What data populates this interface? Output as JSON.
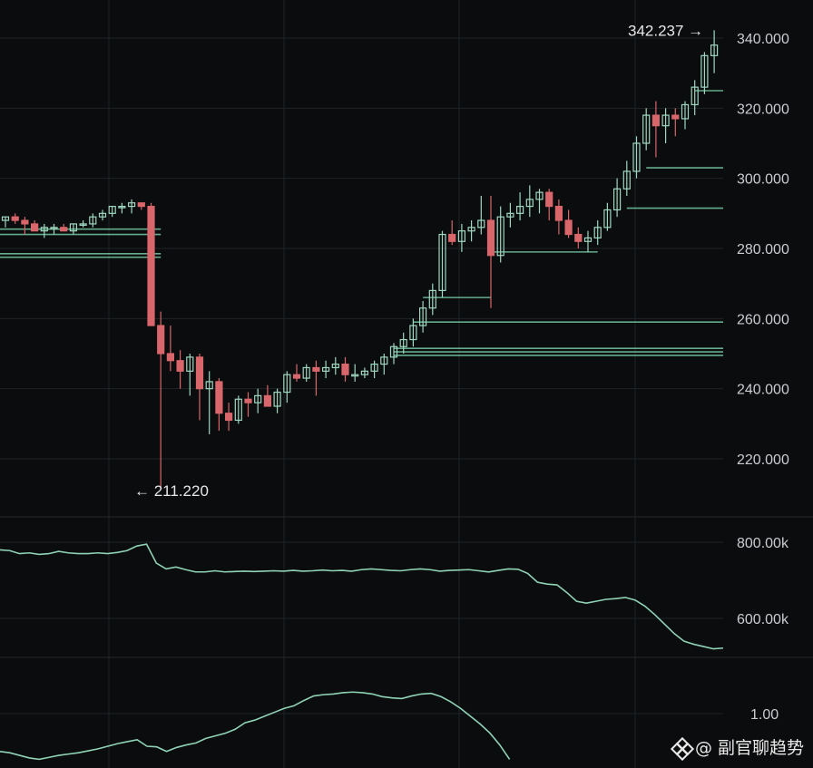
{
  "colors": {
    "background": "#0b0c0d",
    "grid": "#1f2326",
    "up": "#9fd8c0",
    "down": "#d9666b",
    "line": "#8fd3b6",
    "level": "#74c9a3",
    "text": "#c9ccd0"
  },
  "annotations": {
    "high": "342.237",
    "low": "211.220",
    "high_arrow": "→",
    "low_arrow": "←"
  },
  "watermark": {
    "text": "@ 副官聊趋势",
    "icon": "binance-logo-icon"
  },
  "chart_data": [
    {
      "type": "candlestick",
      "ylim": [
        200,
        346
      ],
      "yticks": [
        "220.000",
        "240.000",
        "260.000",
        "280.000",
        "300.000",
        "320.000",
        "340.000"
      ],
      "ytick_values": [
        220,
        240,
        260,
        280,
        300,
        320,
        340
      ],
      "high_marker": 342.237,
      "low_marker": 211.22,
      "candles": [
        [
          288,
          289,
          286,
          289
        ],
        [
          289,
          290,
          287,
          288
        ],
        [
          288,
          289,
          284,
          287
        ],
        [
          287,
          288,
          285,
          285
        ],
        [
          285,
          287,
          283,
          286
        ],
        [
          286,
          287,
          284,
          286
        ],
        [
          286,
          287,
          285,
          285
        ],
        [
          285,
          287,
          284,
          287
        ],
        [
          287,
          288,
          286,
          287
        ],
        [
          287,
          290,
          286,
          289
        ],
        [
          289,
          291,
          288,
          290
        ],
        [
          290,
          292,
          289,
          292
        ],
        [
          292,
          293,
          290,
          292
        ],
        [
          292,
          294,
          290,
          293
        ],
        [
          293,
          293,
          291,
          292
        ],
        [
          292,
          293,
          258,
          258
        ],
        [
          258,
          262,
          211.22,
          250
        ],
        [
          250,
          258,
          245,
          248
        ],
        [
          248,
          251,
          240,
          245
        ],
        [
          245,
          250,
          238,
          249
        ],
        [
          249,
          250,
          231,
          240
        ],
        [
          240,
          245,
          227,
          242
        ],
        [
          242,
          243,
          228,
          233
        ],
        [
          233,
          236,
          228,
          231
        ],
        [
          231,
          238,
          230,
          237
        ],
        [
          237,
          239,
          232,
          236
        ],
        [
          236,
          240,
          233,
          238
        ],
        [
          238,
          241,
          235,
          235
        ],
        [
          235,
          240,
          233,
          239
        ],
        [
          239,
          245,
          236,
          244
        ],
        [
          244,
          247,
          242,
          243
        ],
        [
          243,
          247,
          242,
          246
        ],
        [
          246,
          248,
          238,
          245
        ],
        [
          245,
          248,
          243,
          246
        ],
        [
          246,
          249,
          244,
          247
        ],
        [
          247,
          249,
          242,
          244
        ],
        [
          244,
          247,
          242,
          244
        ],
        [
          244,
          246,
          243,
          245
        ],
        [
          245,
          248,
          243,
          247
        ],
        [
          247,
          250,
          244,
          249
        ],
        [
          249,
          253,
          247,
          252
        ],
        [
          252,
          256,
          250,
          254
        ],
        [
          254,
          260,
          252,
          258
        ],
        [
          258,
          265,
          256,
          263
        ],
        [
          263,
          270,
          261,
          268
        ],
        [
          268,
          285,
          266,
          284
        ],
        [
          284,
          288,
          281,
          282
        ],
        [
          282,
          287,
          279,
          285
        ],
        [
          285,
          288,
          282,
          286
        ],
        [
          286,
          295,
          284,
          288
        ],
        [
          288,
          295,
          263,
          278
        ],
        [
          278,
          292,
          276,
          289
        ],
        [
          289,
          293,
          286,
          290
        ],
        [
          290,
          296,
          288,
          292
        ],
        [
          292,
          298,
          289,
          294
        ],
        [
          294,
          297,
          290,
          296
        ],
        [
          296,
          297,
          288,
          292
        ],
        [
          292,
          294,
          284,
          288
        ],
        [
          288,
          291,
          283,
          284
        ],
        [
          284,
          286,
          280,
          282
        ],
        [
          282,
          285,
          279,
          283
        ],
        [
          283,
          288,
          281,
          286
        ],
        [
          286,
          293,
          285,
          291
        ],
        [
          291,
          300,
          289,
          297
        ],
        [
          297,
          305,
          295,
          302
        ],
        [
          302,
          312,
          300,
          310
        ],
        [
          310,
          320,
          308,
          318
        ],
        [
          318,
          322,
          306,
          315
        ],
        [
          315,
          320,
          310,
          318
        ],
        [
          318,
          320,
          312,
          317
        ],
        [
          317,
          322,
          314,
          321
        ],
        [
          321,
          328,
          318,
          326
        ],
        [
          326,
          336,
          324,
          335
        ],
        [
          335,
          342.237,
          330,
          338
        ]
      ],
      "levels": [
        {
          "price": 284,
          "from": 0,
          "to": 16
        },
        {
          "price": 285.5,
          "from": 0,
          "to": 16
        },
        {
          "price": 277.5,
          "from": 0,
          "to": 16
        },
        {
          "price": 278.5,
          "from": 0,
          "to": 16
        },
        {
          "price": 266,
          "from": 43,
          "to": 50
        },
        {
          "price": 279,
          "from": 50,
          "to": 61
        },
        {
          "price": 259,
          "from": 42,
          "to": 74
        },
        {
          "price": 251.5,
          "from": 40,
          "to": 74
        },
        {
          "price": 250.5,
          "from": 40,
          "to": 74
        },
        {
          "price": 249.5,
          "from": 40,
          "to": 74
        },
        {
          "price": 291.5,
          "from": 64,
          "to": 74
        },
        {
          "price": 303,
          "from": 66,
          "to": 74
        },
        {
          "price": 325,
          "from": 71,
          "to": 74
        }
      ]
    },
    {
      "type": "line",
      "yticks": [
        "600.00k",
        "800.00k"
      ],
      "ytick_values": [
        600000,
        800000
      ],
      "ylim": [
        470000,
        860000
      ],
      "x": [
        0,
        1,
        2,
        3,
        4,
        5,
        6,
        7,
        8,
        9,
        10,
        11,
        12,
        13,
        14,
        15,
        16,
        17,
        18,
        19,
        20,
        21,
        22,
        23,
        24,
        25,
        26,
        27,
        28,
        29,
        30,
        31,
        32,
        33,
        34,
        35,
        36,
        37,
        38,
        39,
        40,
        41,
        42,
        43,
        44,
        45,
        46,
        47,
        48,
        49,
        50,
        51,
        52,
        53,
        54,
        55,
        56,
        57,
        58,
        59,
        60,
        61,
        62,
        63,
        64,
        65,
        66,
        67,
        68,
        69,
        70,
        71,
        72,
        73,
        74
      ],
      "values": [
        780000,
        778000,
        770000,
        772000,
        768000,
        770000,
        776000,
        772000,
        770000,
        770000,
        772000,
        770000,
        773000,
        778000,
        790000,
        795000,
        745000,
        730000,
        735000,
        728000,
        722000,
        722000,
        725000,
        722000,
        723000,
        724000,
        723000,
        724000,
        725000,
        724000,
        726000,
        724000,
        725000,
        727000,
        725000,
        726000,
        724000,
        728000,
        730000,
        728000,
        726000,
        725000,
        728000,
        730000,
        728000,
        724000,
        726000,
        727000,
        728000,
        725000,
        722000,
        726000,
        730000,
        729000,
        718000,
        695000,
        690000,
        688000,
        668000,
        645000,
        640000,
        645000,
        650000,
        652000,
        655000,
        648000,
        632000,
        610000,
        585000,
        560000,
        540000,
        532000,
        526000,
        520000,
        522000
      ]
    },
    {
      "type": "line",
      "yticks": [
        "1.00"
      ],
      "ytick_values": [
        1.0
      ],
      "ylim": [
        0.0,
        1.45
      ],
      "x": [
        0,
        1,
        2,
        3,
        4,
        5,
        6,
        7,
        8,
        9,
        10,
        11,
        12,
        13,
        14,
        15,
        16,
        17,
        18,
        19,
        20,
        21,
        22,
        23,
        24,
        25,
        26,
        27,
        28,
        29,
        30,
        31,
        32,
        33,
        34,
        35,
        36,
        37,
        38,
        39,
        40,
        41,
        42,
        43,
        44,
        45,
        46,
        47,
        48,
        49,
        50,
        51,
        52
      ],
      "values": [
        0.42,
        0.4,
        0.36,
        0.32,
        0.3,
        0.33,
        0.36,
        0.38,
        0.4,
        0.43,
        0.46,
        0.5,
        0.54,
        0.57,
        0.6,
        0.5,
        0.49,
        0.42,
        0.48,
        0.52,
        0.55,
        0.62,
        0.66,
        0.7,
        0.76,
        0.86,
        0.9,
        0.96,
        1.02,
        1.08,
        1.12,
        1.2,
        1.27,
        1.29,
        1.3,
        1.32,
        1.33,
        1.32,
        1.3,
        1.26,
        1.24,
        1.23,
        1.27,
        1.3,
        1.31,
        1.26,
        1.18,
        1.08,
        0.96,
        0.84,
        0.7,
        0.52,
        0.3
      ]
    }
  ]
}
